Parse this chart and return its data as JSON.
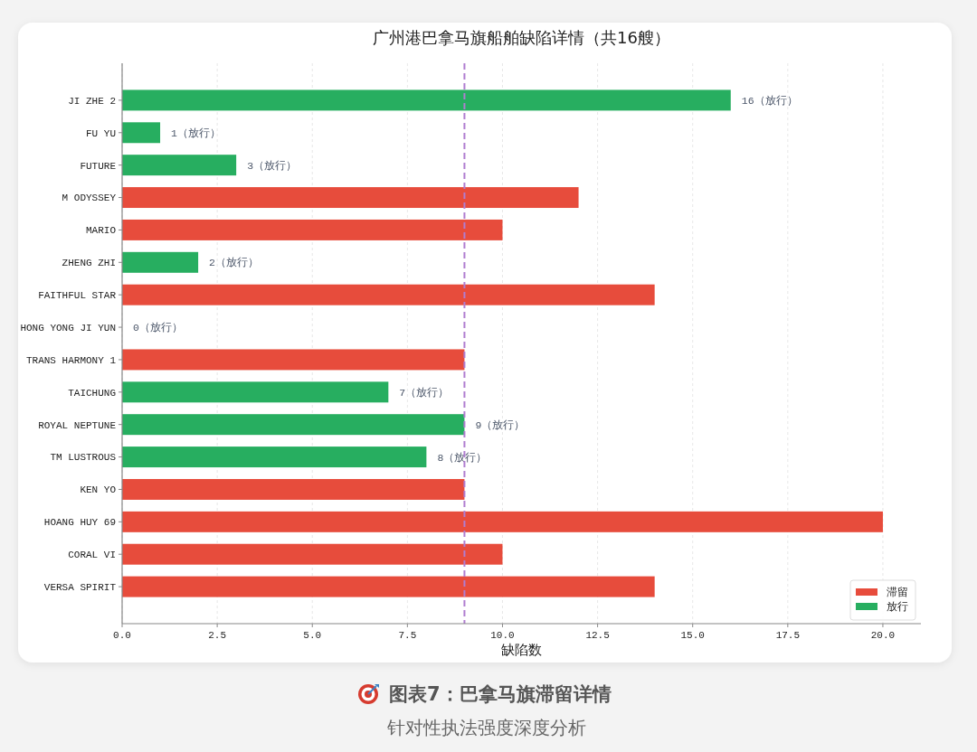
{
  "chart_data": {
    "type": "bar",
    "orientation": "horizontal",
    "title": "广州港巴拿马旗船舶缺陷详情（共16艘）",
    "xlabel": "缺陷数",
    "categories": [
      "JI ZHE 2",
      "FU YU",
      "FUTURE",
      "M ODYSSEY",
      "MARIO",
      "ZHENG ZHI",
      "FAITHFUL STAR",
      "HONG YONG JI YUN",
      "TRANS HARMONY 1",
      "TAICHUNG",
      "ROYAL NEPTUNE",
      "TM LUSTROUS",
      "KEN YO",
      "HOANG HUY 69",
      "CORAL VI",
      "VERSA SPIRIT"
    ],
    "series": [
      {
        "name": "滞留",
        "color": "#e74c3c",
        "values": [
          null,
          null,
          null,
          12,
          10,
          null,
          14,
          null,
          9,
          null,
          null,
          null,
          9,
          20,
          10,
          14
        ]
      },
      {
        "name": "放行",
        "color": "#27ae60",
        "values": [
          16,
          1,
          3,
          null,
          null,
          2,
          null,
          0,
          null,
          7,
          9,
          8,
          null,
          null,
          null,
          null
        ],
        "value_labels": [
          "16（放行）",
          "1（放行）",
          "3（放行）",
          null,
          null,
          "2（放行）",
          null,
          "0（放行）",
          null,
          "7（放行）",
          "9（放行）",
          "8（放行）",
          null,
          null,
          null,
          null
        ]
      }
    ],
    "xlim": [
      0,
      21
    ],
    "xticks": [
      {
        "value": 0,
        "label": "0.0"
      },
      {
        "value": 2.5,
        "label": "2.5"
      },
      {
        "value": 5,
        "label": "5.0"
      },
      {
        "value": 7.5,
        "label": "7.5"
      },
      {
        "value": 10,
        "label": "10.0"
      },
      {
        "value": 12.5,
        "label": "12.5"
      },
      {
        "value": 15,
        "label": "15.0"
      },
      {
        "value": 17.5,
        "label": "17.5"
      },
      {
        "value": 20,
        "label": "20.0"
      }
    ],
    "grid": "x",
    "legend": "bottom right",
    "ref_lines": [
      {
        "axis": "x",
        "value": 9,
        "color": "#b07dd0",
        "line_style": "dashed"
      }
    ],
    "annotations": [
      "图表7：巴拿马旗滞留详情",
      "针对性执法强度深度分析"
    ]
  }
}
